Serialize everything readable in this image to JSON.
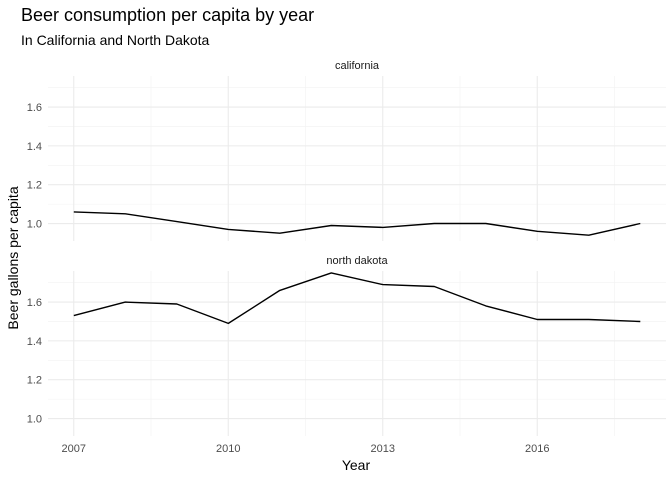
{
  "chart_data": {
    "type": "line",
    "title": "Beer consumption per capita by year",
    "subtitle": "In California and North Dakota",
    "xlabel": "Year",
    "ylabel": "Beer gallons per capita",
    "x_ticks": [
      2007,
      2010,
      2013,
      2016
    ],
    "y_ticks": [
      1.0,
      1.2,
      1.4,
      1.6
    ],
    "y_tick_labels": [
      "1.0",
      "1.2",
      "1.4",
      "1.6"
    ],
    "xlim": [
      2006.5,
      2018.5
    ],
    "ylim": [
      0.91,
      1.76
    ],
    "grid": true,
    "facets": [
      {
        "label": "california",
        "x": [
          2007,
          2008,
          2009,
          2010,
          2011,
          2012,
          2013,
          2014,
          2015,
          2016,
          2017,
          2018
        ],
        "values": [
          1.06,
          1.05,
          1.01,
          0.97,
          0.95,
          0.99,
          0.98,
          1.0,
          1.0,
          0.96,
          0.94,
          1.0
        ]
      },
      {
        "label": "north dakota",
        "x": [
          2007,
          2008,
          2009,
          2010,
          2011,
          2012,
          2013,
          2014,
          2015,
          2016,
          2017,
          2018
        ],
        "values": [
          1.53,
          1.6,
          1.59,
          1.49,
          1.66,
          1.75,
          1.69,
          1.68,
          1.58,
          1.51,
          1.51,
          1.5
        ]
      }
    ]
  }
}
